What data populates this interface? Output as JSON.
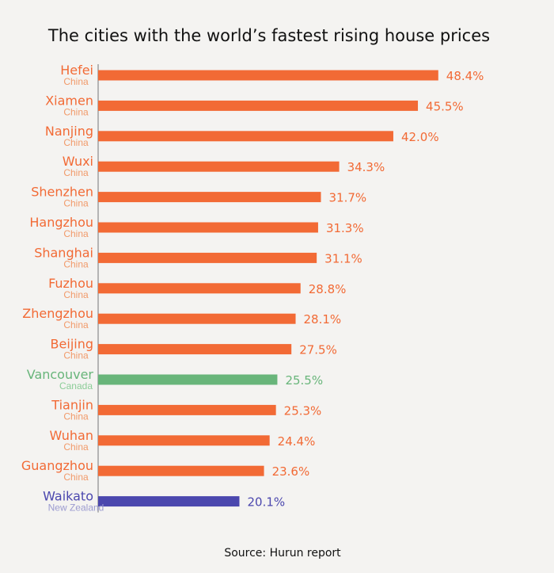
{
  "chart_data": {
    "type": "bar",
    "orientation": "horizontal",
    "title": "The cities with the world’s fastest rising house prices",
    "source": "Source: Hurun report",
    "value_suffix": "%",
    "categories": [
      "Hefei",
      "Xiamen",
      "Nanjing",
      "Wuxi",
      "Shenzhen",
      "Hangzhou",
      "Shanghai",
      "Fuzhou",
      "Zhengzhou",
      "Beijing",
      "Vancouver",
      "Tianjin",
      "Wuhan",
      "Guangzhou",
      "Waikato"
    ],
    "countries": [
      "China",
      "China",
      "China",
      "China",
      "China",
      "China",
      "China",
      "China",
      "China",
      "China",
      "Canada",
      "China",
      "China",
      "China",
      "New Zealand"
    ],
    "values": [
      48.4,
      45.5,
      42.0,
      34.3,
      31.7,
      31.3,
      31.1,
      28.8,
      28.1,
      27.5,
      25.5,
      25.3,
      24.4,
      23.6,
      20.1
    ],
    "value_labels": [
      "48.4%",
      "45.5%",
      "42.0%",
      "34.3%",
      "31.7%",
      "31.3%",
      "31.1%",
      "28.8%",
      "28.1%",
      "27.5%",
      "25.5%",
      "25.3%",
      "24.4%",
      "23.6%",
      "20.1%"
    ],
    "colors": {
      "China": "#f26a35",
      "Canada": "#68b57a",
      "New Zealand": "#4b47ae",
      "China_sub": "#f19a6a",
      "Canada_sub": "#8ccd98",
      "New Zealand_sub": "#9b9bd0"
    },
    "xlim": [
      0,
      50
    ]
  }
}
